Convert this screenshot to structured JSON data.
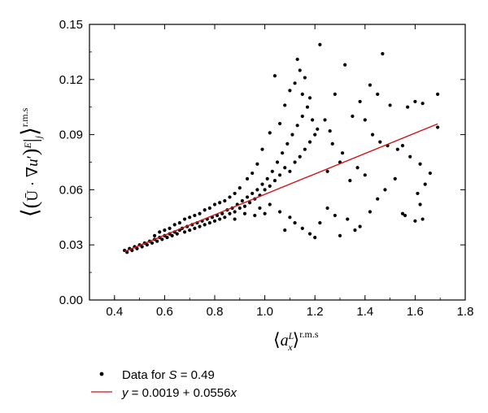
{
  "chart_data": {
    "type": "scatter",
    "title": "",
    "xlabel": "⟨a_x^L⟩^r.m.s",
    "ylabel": "⟨(Ū · ∇u′)^E |_j⟩^r.m.s",
    "xlim": [
      0.3,
      1.8
    ],
    "ylim": [
      0.0,
      0.15
    ],
    "x_ticks": [
      "0.4",
      "0.6",
      "0.8",
      "1.0",
      "1.2",
      "1.4",
      "1.6",
      "1.8"
    ],
    "y_ticks": [
      "0.00",
      "0.03",
      "0.06",
      "0.09",
      "0.12",
      "0.15"
    ],
    "x_tick_values": [
      0.4,
      0.6,
      0.8,
      1.0,
      1.2,
      1.4,
      1.6,
      1.8
    ],
    "y_tick_values": [
      0.0,
      0.03,
      0.06,
      0.09,
      0.12,
      0.15
    ],
    "grid": false,
    "legend_position": "bottom-left",
    "series": [
      {
        "name": "Data for S = 0.49",
        "kind": "scatter",
        "color": "#000000",
        "points": [
          [
            0.44,
            0.027
          ],
          [
            0.45,
            0.026
          ],
          [
            0.46,
            0.028
          ],
          [
            0.47,
            0.027
          ],
          [
            0.48,
            0.029
          ],
          [
            0.49,
            0.028
          ],
          [
            0.5,
            0.03
          ],
          [
            0.51,
            0.029
          ],
          [
            0.52,
            0.031
          ],
          [
            0.53,
            0.03
          ],
          [
            0.54,
            0.032
          ],
          [
            0.55,
            0.031
          ],
          [
            0.56,
            0.033
          ],
          [
            0.57,
            0.032
          ],
          [
            0.58,
            0.034
          ],
          [
            0.59,
            0.033
          ],
          [
            0.6,
            0.035
          ],
          [
            0.61,
            0.034
          ],
          [
            0.62,
            0.036
          ],
          [
            0.63,
            0.035
          ],
          [
            0.64,
            0.037
          ],
          [
            0.65,
            0.036
          ],
          [
            0.66,
            0.038
          ],
          [
            0.67,
            0.039
          ],
          [
            0.68,
            0.037
          ],
          [
            0.69,
            0.04
          ],
          [
            0.7,
            0.038
          ],
          [
            0.71,
            0.041
          ],
          [
            0.72,
            0.039
          ],
          [
            0.73,
            0.042
          ],
          [
            0.74,
            0.04
          ],
          [
            0.75,
            0.043
          ],
          [
            0.76,
            0.041
          ],
          [
            0.77,
            0.044
          ],
          [
            0.78,
            0.042
          ],
          [
            0.79,
            0.045
          ],
          [
            0.8,
            0.043
          ],
          [
            0.81,
            0.046
          ],
          [
            0.82,
            0.044
          ],
          [
            0.83,
            0.047
          ],
          [
            0.84,
            0.045
          ],
          [
            0.85,
            0.049
          ],
          [
            0.86,
            0.047
          ],
          [
            0.87,
            0.05
          ],
          [
            0.88,
            0.048
          ],
          [
            0.89,
            0.052
          ],
          [
            0.9,
            0.05
          ],
          [
            0.91,
            0.054
          ],
          [
            0.92,
            0.051
          ],
          [
            0.93,
            0.056
          ],
          [
            0.94,
            0.053
          ],
          [
            0.95,
            0.058
          ],
          [
            0.96,
            0.055
          ],
          [
            0.97,
            0.06
          ],
          [
            0.98,
            0.057
          ],
          [
            0.99,
            0.063
          ],
          [
            1.0,
            0.06
          ],
          [
            1.01,
            0.066
          ],
          [
            1.02,
            0.062
          ],
          [
            1.03,
            0.07
          ],
          [
            1.04,
            0.065
          ],
          [
            1.05,
            0.075
          ],
          [
            1.06,
            0.068
          ],
          [
            1.07,
            0.08
          ],
          [
            1.08,
            0.072
          ],
          [
            1.09,
            0.085
          ],
          [
            1.1,
            0.07
          ],
          [
            1.11,
            0.09
          ],
          [
            1.12,
            0.075
          ],
          [
            1.13,
            0.095
          ],
          [
            1.14,
            0.078
          ],
          [
            1.15,
            0.1
          ],
          [
            1.16,
            0.082
          ],
          [
            1.17,
            0.105
          ],
          [
            1.18,
            0.086
          ],
          [
            1.19,
            0.098
          ],
          [
            1.2,
            0.09
          ],
          [
            1.21,
            0.093
          ],
          [
            1.22,
            0.139
          ],
          [
            1.13,
            0.131
          ],
          [
            1.14,
            0.125
          ],
          [
            1.16,
            0.121
          ],
          [
            1.12,
            0.118
          ],
          [
            1.1,
            0.114
          ],
          [
            1.04,
            0.122
          ],
          [
            1.47,
            0.134
          ],
          [
            1.32,
            0.128
          ],
          [
            1.45,
            0.112
          ],
          [
            1.69,
            0.112
          ],
          [
            1.63,
            0.107
          ],
          [
            1.6,
            0.108
          ],
          [
            1.57,
            0.105
          ],
          [
            1.5,
            0.106
          ],
          [
            1.42,
            0.117
          ],
          [
            1.38,
            0.108
          ],
          [
            1.28,
            0.112
          ],
          [
            1.35,
            0.1
          ],
          [
            1.4,
            0.098
          ],
          [
            1.43,
            0.09
          ],
          [
            1.46,
            0.086
          ],
          [
            1.49,
            0.084
          ],
          [
            1.53,
            0.082
          ],
          [
            1.55,
            0.084
          ],
          [
            1.58,
            0.078
          ],
          [
            1.62,
            0.074
          ],
          [
            1.66,
            0.069
          ],
          [
            1.69,
            0.094
          ],
          [
            1.64,
            0.063
          ],
          [
            1.61,
            0.058
          ],
          [
            1.62,
            0.052
          ],
          [
            1.63,
            0.044
          ],
          [
            1.6,
            0.043
          ],
          [
            1.56,
            0.046
          ],
          [
            1.55,
            0.047
          ],
          [
            1.52,
            0.066
          ],
          [
            1.48,
            0.06
          ],
          [
            1.45,
            0.055
          ],
          [
            1.42,
            0.048
          ],
          [
            1.38,
            0.04
          ],
          [
            1.36,
            0.038
          ],
          [
            1.33,
            0.044
          ],
          [
            1.3,
            0.035
          ],
          [
            1.28,
            0.046
          ],
          [
            1.25,
            0.05
          ],
          [
            1.22,
            0.042
          ],
          [
            1.2,
            0.034
          ],
          [
            1.18,
            0.036
          ],
          [
            1.15,
            0.039
          ],
          [
            1.12,
            0.042
          ],
          [
            1.1,
            0.045
          ],
          [
            1.08,
            0.038
          ],
          [
            1.06,
            0.048
          ],
          [
            1.02,
            0.052
          ],
          [
            1.0,
            0.047
          ],
          [
            0.98,
            0.05
          ],
          [
            0.96,
            0.046
          ],
          [
            0.92,
            0.047
          ],
          [
            0.88,
            0.044
          ],
          [
            1.25,
            0.07
          ],
          [
            1.3,
            0.075
          ],
          [
            1.34,
            0.065
          ],
          [
            1.37,
            0.072
          ],
          [
            1.4,
            0.068
          ],
          [
            1.27,
            0.085
          ],
          [
            1.31,
            0.08
          ],
          [
            1.24,
            0.098
          ],
          [
            1.26,
            0.092
          ],
          [
            1.18,
            0.11
          ],
          [
            1.15,
            0.112
          ],
          [
            1.08,
            0.106
          ],
          [
            1.06,
            0.096
          ],
          [
            1.02,
            0.091
          ],
          [
            0.99,
            0.082
          ],
          [
            0.97,
            0.074
          ],
          [
            0.95,
            0.069
          ],
          [
            0.93,
            0.066
          ],
          [
            0.9,
            0.061
          ],
          [
            0.88,
            0.058
          ],
          [
            0.86,
            0.056
          ],
          [
            0.84,
            0.054
          ],
          [
            0.82,
            0.053
          ],
          [
            0.8,
            0.052
          ],
          [
            0.78,
            0.05
          ],
          [
            0.76,
            0.049
          ],
          [
            0.74,
            0.047
          ],
          [
            0.72,
            0.046
          ],
          [
            0.7,
            0.045
          ],
          [
            0.68,
            0.044
          ],
          [
            0.66,
            0.042
          ],
          [
            0.64,
            0.041
          ],
          [
            0.62,
            0.039
          ],
          [
            0.6,
            0.038
          ],
          [
            0.58,
            0.037
          ],
          [
            0.56,
            0.035
          ]
        ]
      },
      {
        "name": "y = 0.0019 + 0.0556x",
        "kind": "line",
        "color": "#d11414",
        "intercept": 0.0019,
        "slope": 0.0556,
        "x_range": [
          0.44,
          1.69
        ]
      }
    ]
  },
  "legend": {
    "scatter_prefix": "Data for ",
    "scatter_var": "S",
    "scatter_suffix": " = 0.49",
    "line_var": "y",
    "line_suffix": " = 0.0019 + 0.0556",
    "line_var2": "x"
  }
}
